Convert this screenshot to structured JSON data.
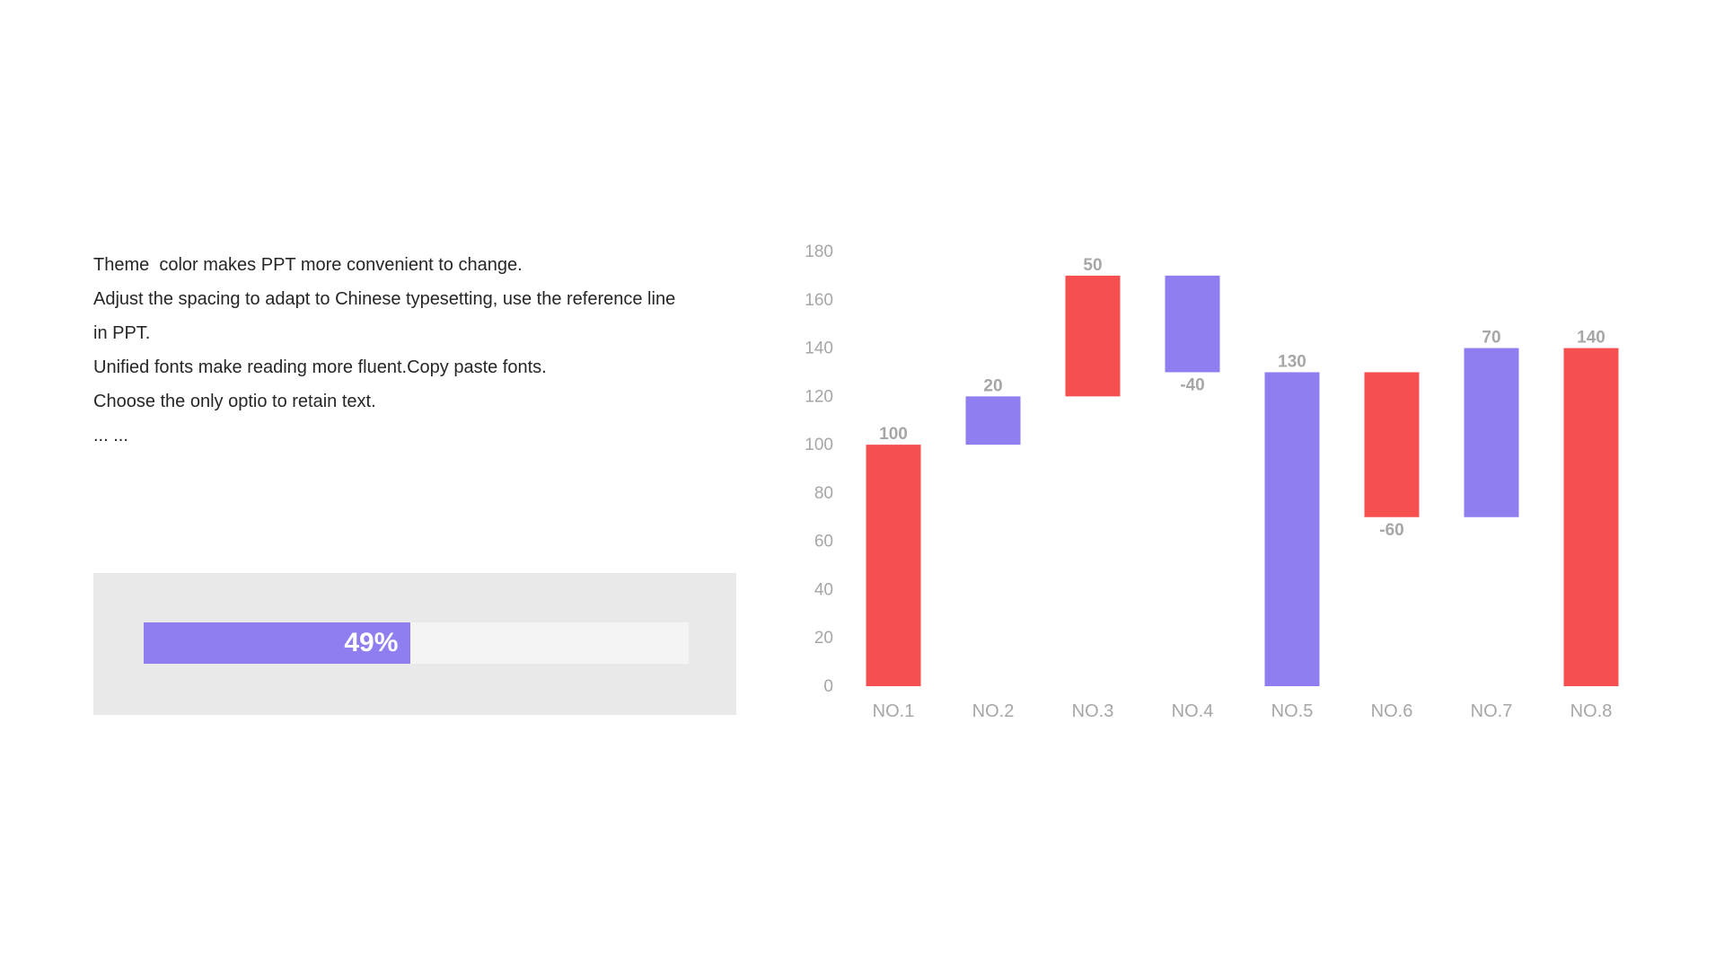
{
  "text": {
    "lines": [
      "Theme  color makes PPT more convenient to change.",
      "Adjust the spacing to adapt to Chinese typesetting, use the reference line",
      "in PPT.",
      "Unified fonts make reading more fluent.Copy paste fonts.",
      "Choose the only optio to retain text.",
      "... ..."
    ]
  },
  "progress": {
    "value": 49,
    "label": "49%",
    "fill_color": "#8e7ef0",
    "track_color": "#f4f4f4",
    "panel_color": "#e9e9e9"
  },
  "chart_data": {
    "type": "bar",
    "subtype": "waterfall",
    "title": "",
    "xlabel": "",
    "ylabel": "",
    "ylim": [
      0,
      180
    ],
    "yticks": [
      0,
      20,
      40,
      60,
      80,
      100,
      120,
      140,
      160,
      180
    ],
    "grid": false,
    "legend": "none",
    "categories": [
      "NO.1",
      "NO.2",
      "NO.3",
      "NO.4",
      "NO.5",
      "NO.6",
      "NO.7",
      "NO.8"
    ],
    "bars": [
      {
        "category": "NO.1",
        "start": 0,
        "end": 100,
        "label": "100",
        "color": "#f64f4f"
      },
      {
        "category": "NO.2",
        "start": 100,
        "end": 120,
        "label": "20",
        "color": "#8e7ef0"
      },
      {
        "category": "NO.3",
        "start": 120,
        "end": 170,
        "label": "50",
        "color": "#f64f4f"
      },
      {
        "category": "NO.4",
        "start": 170,
        "end": 130,
        "label": "-40",
        "color": "#8e7ef0"
      },
      {
        "category": "NO.5",
        "start": 0,
        "end": 130,
        "label": "130",
        "color": "#8e7ef0"
      },
      {
        "category": "NO.6",
        "start": 130,
        "end": 70,
        "label": "-60",
        "color": "#f64f4f"
      },
      {
        "category": "NO.7",
        "start": 70,
        "end": 140,
        "label": "70",
        "color": "#8e7ef0"
      },
      {
        "category": "NO.8",
        "start": 0,
        "end": 140,
        "label": "140",
        "color": "#f64f4f"
      }
    ],
    "colors": {
      "red": "#f64f4f",
      "purple": "#8e7ef0",
      "label": "#a6a6a6",
      "tick": "#a6a6a6"
    }
  }
}
